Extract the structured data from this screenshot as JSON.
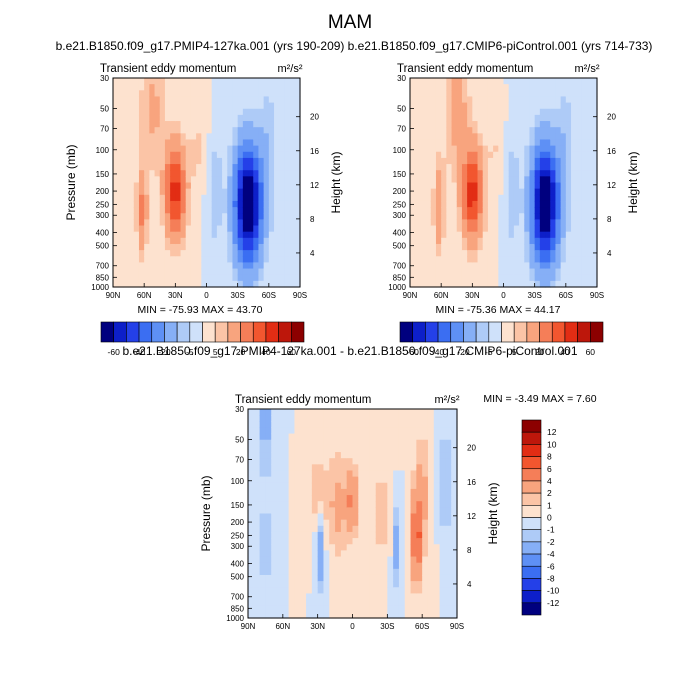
{
  "title": "MAM",
  "colors": {
    "levels": [
      "#00007f",
      "#0d1fc9",
      "#2440e8",
      "#3b6ef2",
      "#5e90f5",
      "#86aff6",
      "#aecbf7",
      "#cfe1fa",
      "#fde2cf",
      "#fbc4a6",
      "#f8a47e",
      "#f57e58",
      "#f2562f",
      "#e22d14",
      "#bd170b",
      "#8c0000"
    ]
  },
  "chart_data": [
    {
      "type": "heatmap",
      "id": "left",
      "subtitle": "b.e21.B1850.f09_g17.PMIP4-127ka.001 (yrs 190-209)",
      "panel_title": "Transient eddy momentum",
      "units": "m²/s²",
      "ylabel": "Pressure (mb)",
      "ylabel_right": "Height (km)",
      "x_ticks": [
        "90N",
        "60N",
        "30N",
        "0",
        "30S",
        "60S",
        "90S"
      ],
      "y_ticks": [
        30,
        50,
        70,
        100,
        150,
        200,
        250,
        300,
        400,
        500,
        700,
        850,
        1000
      ],
      "height_ticks": [
        20,
        16,
        12,
        8,
        4
      ],
      "minmax_text": "MIN = -75.93   MAX =   43.70",
      "colorbar_labels": [
        "-60",
        "-40",
        "-20",
        "-5",
        "5",
        "20",
        "40",
        "60"
      ],
      "colorbar_levels": [
        -70,
        -60,
        -50,
        -40,
        -30,
        -20,
        -10,
        -5,
        0,
        5,
        10,
        20,
        30,
        40,
        50,
        60,
        70
      ],
      "blobs": [
        {
          "lat": 30,
          "p": 200,
          "amp": 43.7,
          "slat": 10,
          "sz": 0.22
        },
        {
          "lat": 62,
          "p": 280,
          "amp": 22,
          "slat": 5,
          "sz": 0.2
        },
        {
          "lat": 52,
          "p": 50,
          "amp": 12,
          "slat": 12,
          "sz": 0.3
        },
        {
          "lat": 8,
          "p": 100,
          "amp": 6,
          "slat": 10,
          "sz": 0.18
        },
        {
          "lat": -40,
          "p": 250,
          "amp": -75.93,
          "slat": 13,
          "sz": 0.28
        },
        {
          "lat": -8,
          "p": 200,
          "amp": -10,
          "slat": 7,
          "sz": 0.25
        },
        {
          "lat": -60,
          "p": 100,
          "amp": -8,
          "slat": 10,
          "sz": 0.35
        }
      ]
    },
    {
      "type": "heatmap",
      "id": "right",
      "subtitle": "b.e21.B1850.f09_g17.CMIP6-piControl.001 (yrs 714-733)",
      "panel_title": "Transient eddy momentum",
      "units": "m²/s²",
      "ylabel": "",
      "ylabel_right": "Height (km)",
      "x_ticks": [
        "90N",
        "60N",
        "30N",
        "0",
        "30S",
        "60S",
        "90S"
      ],
      "y_ticks": [
        30,
        50,
        70,
        100,
        150,
        200,
        250,
        300,
        400,
        500,
        700,
        850,
        1000
      ],
      "height_ticks": [
        20,
        16,
        12,
        8,
        4
      ],
      "minmax_text": "MIN = -75.36   MAX =   44.17",
      "colorbar_labels": [
        "-60",
        "-40",
        "-20",
        "-5",
        "5",
        "20",
        "40",
        "60"
      ],
      "colorbar_levels": [
        -70,
        -60,
        -50,
        -40,
        -30,
        -20,
        -10,
        -5,
        0,
        5,
        10,
        20,
        30,
        40,
        50,
        60,
        70
      ],
      "blobs": [
        {
          "lat": 30,
          "p": 210,
          "amp": 44.17,
          "slat": 10,
          "sz": 0.22
        },
        {
          "lat": 62,
          "p": 260,
          "amp": 20,
          "slat": 5,
          "sz": 0.2
        },
        {
          "lat": 45,
          "p": 50,
          "amp": 14,
          "slat": 12,
          "sz": 0.3
        },
        {
          "lat": 8,
          "p": 100,
          "amp": 5,
          "slat": 10,
          "sz": 0.18
        },
        {
          "lat": -40,
          "p": 250,
          "amp": -75.36,
          "slat": 13,
          "sz": 0.28
        },
        {
          "lat": -8,
          "p": 200,
          "amp": -10,
          "slat": 7,
          "sz": 0.25
        },
        {
          "lat": -60,
          "p": 100,
          "amp": -8,
          "slat": 10,
          "sz": 0.35
        }
      ]
    },
    {
      "type": "heatmap",
      "id": "diff",
      "subtitle": "b.e21.B1850.f09_g17.PMIP4-127ka.001 - b.e21.B1850.f09_g17.CMIP6-piControl.001",
      "panel_title": "Transient eddy momentum",
      "units": "m²/s²",
      "ylabel": "Pressure (mb)",
      "ylabel_right": "Height (km)",
      "x_ticks": [
        "90N",
        "60N",
        "30N",
        "0",
        "30S",
        "60S",
        "90S"
      ],
      "y_ticks": [
        30,
        50,
        70,
        100,
        150,
        200,
        250,
        300,
        400,
        500,
        700,
        850,
        1000
      ],
      "height_ticks": [
        20,
        16,
        12,
        8,
        4
      ],
      "minmax_text": "MIN =  -3.49  MAX =   7.60",
      "colorbar_labels": [
        "12",
        "10",
        "8",
        "6",
        "4",
        "2",
        "1",
        "0",
        "-1",
        "-2",
        "-4",
        "-6",
        "-8",
        "-10",
        "-12"
      ],
      "colorbar_levels": [
        -14,
        -12,
        -10,
        -8,
        -6,
        -4,
        -2,
        -1,
        0,
        1,
        2,
        4,
        6,
        8,
        10,
        12,
        14
      ],
      "blobs": [
        {
          "lat": -55,
          "p": 270,
          "amp": 7.6,
          "slat": 3.5,
          "sz": 0.2
        },
        {
          "lat": -60,
          "p": 130,
          "amp": 2.5,
          "slat": 7,
          "sz": 0.3
        },
        {
          "lat": 0,
          "p": 140,
          "amp": 4.5,
          "slat": 4,
          "sz": 0.15
        },
        {
          "lat": 12,
          "p": 150,
          "amp": 2.5,
          "slat": 10,
          "sz": 0.25
        },
        {
          "lat": 30,
          "p": 130,
          "amp": 2,
          "slat": 8,
          "sz": 0.2
        },
        {
          "lat": -25,
          "p": 170,
          "amp": 1.8,
          "slat": 8,
          "sz": 0.2
        },
        {
          "lat": 75,
          "p": 40,
          "amp": -2.5,
          "slat": 7,
          "sz": 0.25
        },
        {
          "lat": 75,
          "p": 300,
          "amp": -2.8,
          "slat": 4,
          "sz": 0.18
        },
        {
          "lat": 28,
          "p": 320,
          "amp": -3.49,
          "slat": 4,
          "sz": 0.2
        },
        {
          "lat": -38,
          "p": 300,
          "amp": -3,
          "slat": 3.5,
          "sz": 0.18
        },
        {
          "lat": -80,
          "p": 100,
          "amp": -2.5,
          "slat": 5,
          "sz": 0.25
        }
      ]
    }
  ]
}
